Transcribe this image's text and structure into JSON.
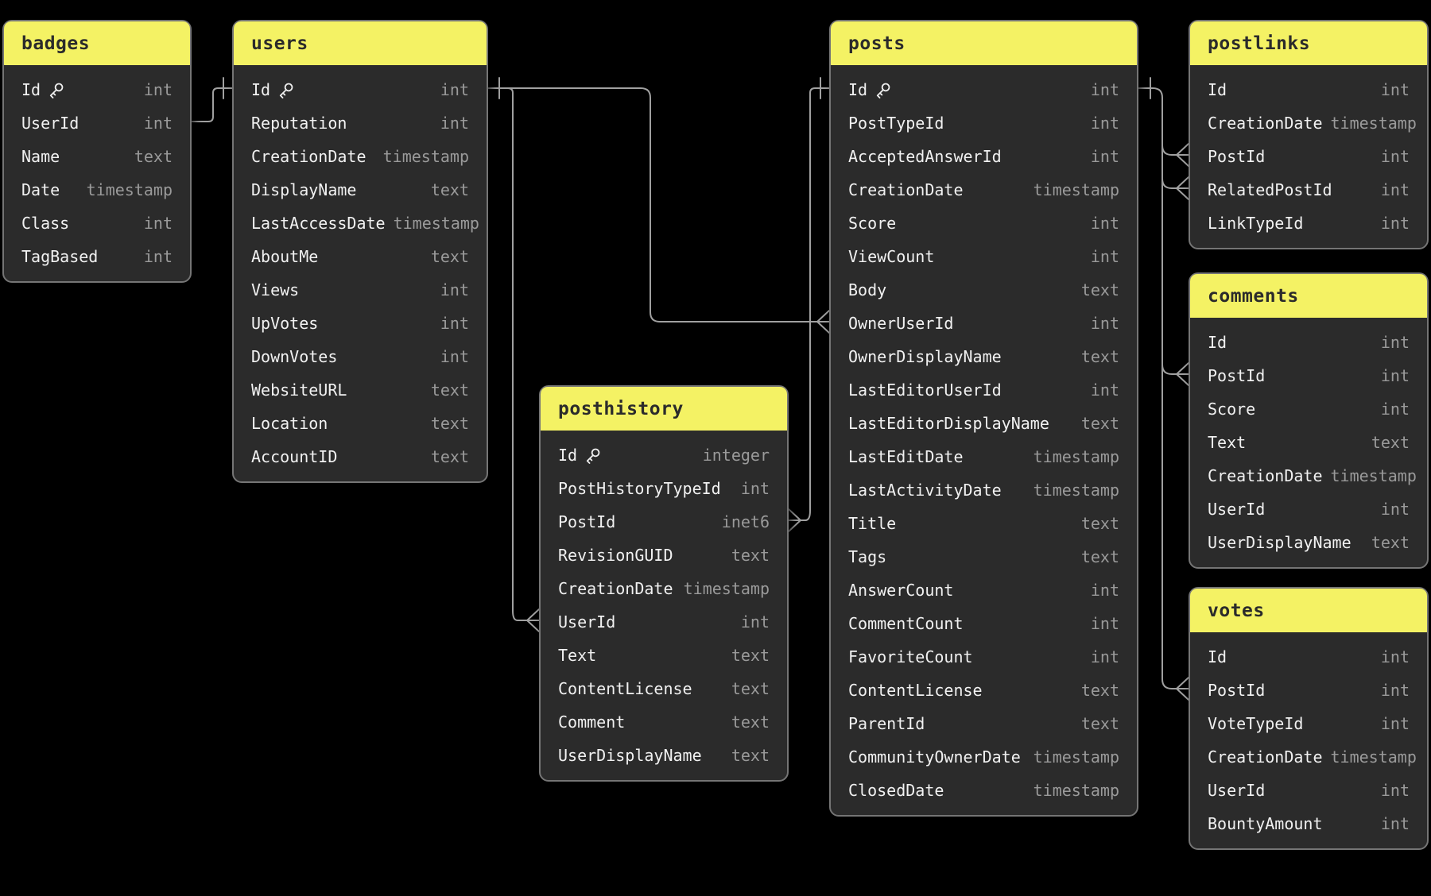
{
  "diagram": {
    "background_color": "#000000",
    "header_color": "#f4f264",
    "table_bg_color": "#2b2b2b",
    "field_text_color": "#f1f1f1",
    "type_text_color": "#9a9a9a",
    "connector_color": "#a0a0a0",
    "tables": [
      {
        "name": "badges",
        "fields": [
          {
            "name": "Id",
            "type": "int",
            "key": true
          },
          {
            "name": "UserId",
            "type": "int"
          },
          {
            "name": "Name",
            "type": "text"
          },
          {
            "name": "Date",
            "type": "timestamp"
          },
          {
            "name": "Class",
            "type": "int"
          },
          {
            "name": "TagBased",
            "type": "int"
          }
        ]
      },
      {
        "name": "users",
        "fields": [
          {
            "name": "Id",
            "type": "int",
            "key": true
          },
          {
            "name": "Reputation",
            "type": "int"
          },
          {
            "name": "CreationDate",
            "type": "timestamp"
          },
          {
            "name": "DisplayName",
            "type": "text"
          },
          {
            "name": "LastAccessDate",
            "type": "timestamp"
          },
          {
            "name": "AboutMe",
            "type": "text"
          },
          {
            "name": "Views",
            "type": "int"
          },
          {
            "name": "UpVotes",
            "type": "int"
          },
          {
            "name": "DownVotes",
            "type": "int"
          },
          {
            "name": "WebsiteURL",
            "type": "text"
          },
          {
            "name": "Location",
            "type": "text"
          },
          {
            "name": "AccountID",
            "type": "text"
          }
        ]
      },
      {
        "name": "posthistory",
        "fields": [
          {
            "name": "Id",
            "type": "integer",
            "key": true
          },
          {
            "name": "PostHistoryTypeId",
            "type": "int"
          },
          {
            "name": "PostId",
            "type": "inet6"
          },
          {
            "name": "RevisionGUID",
            "type": "text"
          },
          {
            "name": "CreationDate",
            "type": "timestamp"
          },
          {
            "name": "UserId",
            "type": "int"
          },
          {
            "name": "Text",
            "type": "text"
          },
          {
            "name": "ContentLicense",
            "type": "text"
          },
          {
            "name": "Comment",
            "type": "text"
          },
          {
            "name": "UserDisplayName",
            "type": "text"
          }
        ]
      },
      {
        "name": "posts",
        "fields": [
          {
            "name": "Id",
            "type": "int",
            "key": true
          },
          {
            "name": "PostTypeId",
            "type": "int"
          },
          {
            "name": "AcceptedAnswerId",
            "type": "int"
          },
          {
            "name": "CreationDate",
            "type": "timestamp"
          },
          {
            "name": "Score",
            "type": "int"
          },
          {
            "name": "ViewCount",
            "type": "int"
          },
          {
            "name": "Body",
            "type": "text"
          },
          {
            "name": "OwnerUserId",
            "type": "int"
          },
          {
            "name": "OwnerDisplayName",
            "type": "text"
          },
          {
            "name": "LastEditorUserId",
            "type": "int"
          },
          {
            "name": "LastEditorDisplayName",
            "type": "text"
          },
          {
            "name": "LastEditDate",
            "type": "timestamp"
          },
          {
            "name": "LastActivityDate",
            "type": "timestamp"
          },
          {
            "name": "Title",
            "type": "text"
          },
          {
            "name": "Tags",
            "type": "text"
          },
          {
            "name": "AnswerCount",
            "type": "int"
          },
          {
            "name": "CommentCount",
            "type": "int"
          },
          {
            "name": "FavoriteCount",
            "type": "int"
          },
          {
            "name": "ContentLicense",
            "type": "text"
          },
          {
            "name": "ParentId",
            "type": "text"
          },
          {
            "name": "CommunityOwnerDate",
            "type": "timestamp"
          },
          {
            "name": "ClosedDate",
            "type": "timestamp"
          }
        ]
      },
      {
        "name": "postlinks",
        "fields": [
          {
            "name": "Id",
            "type": "int"
          },
          {
            "name": "CreationDate",
            "type": "timestamp"
          },
          {
            "name": "PostId",
            "type": "int"
          },
          {
            "name": "RelatedPostId",
            "type": "int"
          },
          {
            "name": "LinkTypeId",
            "type": "int"
          }
        ]
      },
      {
        "name": "comments",
        "fields": [
          {
            "name": "Id",
            "type": "int"
          },
          {
            "name": "PostId",
            "type": "int"
          },
          {
            "name": "Score",
            "type": "int"
          },
          {
            "name": "Text",
            "type": "text"
          },
          {
            "name": "CreationDate",
            "type": "timestamp"
          },
          {
            "name": "UserId",
            "type": "int"
          },
          {
            "name": "UserDisplayName",
            "type": "text"
          }
        ]
      },
      {
        "name": "votes",
        "fields": [
          {
            "name": "Id",
            "type": "int"
          },
          {
            "name": "PostId",
            "type": "int"
          },
          {
            "name": "VoteTypeId",
            "type": "int"
          },
          {
            "name": "CreationDate",
            "type": "timestamp"
          },
          {
            "name": "UserId",
            "type": "int"
          },
          {
            "name": "BountyAmount",
            "type": "int"
          }
        ]
      }
    ],
    "relationships": [
      {
        "from": "badges.UserId",
        "to": "users.Id",
        "to_cardinality": "one"
      },
      {
        "from": "users.Id",
        "to": "posthistory.UserId",
        "to_cardinality": "many"
      },
      {
        "from": "users.Id",
        "to": "posts.OwnerUserId",
        "from_cardinality": "one",
        "to_cardinality": "many"
      },
      {
        "from": "posts.Id",
        "to": "posthistory.PostId",
        "from_cardinality": "one",
        "to_cardinality": "many"
      },
      {
        "from": "posts.Id",
        "to": "votes.PostId",
        "from_cardinality": "one",
        "to_cardinality": "many"
      },
      {
        "from": "posts.Id",
        "to": "postlinks.PostId",
        "to_cardinality": "many"
      },
      {
        "from": "posts.Id",
        "to": "postlinks.RelatedPostId",
        "to_cardinality": "many"
      },
      {
        "from": "posts.Id",
        "to": "comments.PostId",
        "to_cardinality": "many"
      }
    ]
  }
}
